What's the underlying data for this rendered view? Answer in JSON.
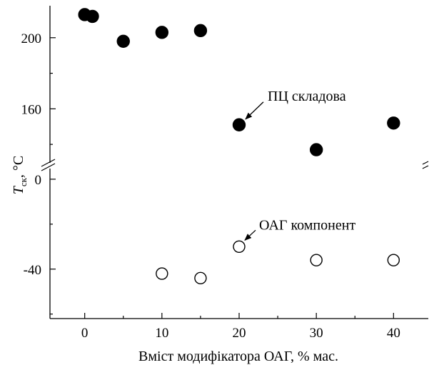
{
  "chart_data": {
    "type": "scatter",
    "title": "",
    "xlabel": "Вміст модифікатора ОАГ, % мас.",
    "ylabel": {
      "symbol": "T",
      "subscript": "ск",
      "unit": ", °C"
    },
    "x_ticks": [
      "0",
      "10",
      "20",
      "30",
      "40"
    ],
    "xlim": [
      -4.5,
      44.5
    ],
    "broken_y_axis": true,
    "upper_panel": {
      "ylim": [
        128,
        218
      ],
      "ticks": [
        "200",
        "160"
      ]
    },
    "lower_panel": {
      "ylim": [
        -62,
        6
      ],
      "ticks": [
        "0",
        "-40"
      ]
    },
    "series": [
      {
        "marker": "filled-circle",
        "panel": "upper",
        "points": [
          {
            "x": 0,
            "y": 213
          },
          {
            "x": 1,
            "y": 212
          },
          {
            "x": 5,
            "y": 198
          },
          {
            "x": 10,
            "y": 203
          },
          {
            "x": 15,
            "y": 204
          },
          {
            "x": 20,
            "y": 151
          },
          {
            "x": 30,
            "y": 137
          },
          {
            "x": 40,
            "y": 152
          }
        ]
      },
      {
        "marker": "open-circle",
        "panel": "lower",
        "points": [
          {
            "x": 10,
            "y": -42
          },
          {
            "x": 15,
            "y": -44
          },
          {
            "x": 20,
            "y": -30
          },
          {
            "x": 30,
            "y": -36
          },
          {
            "x": 40,
            "y": -36
          }
        ]
      }
    ],
    "annotations": [
      {
        "text": "ПЦ складова",
        "target": {
          "x": 20,
          "y": 151
        }
      },
      {
        "text": "ОАГ компонент",
        "target": {
          "x": 20,
          "y": -30
        }
      }
    ]
  }
}
